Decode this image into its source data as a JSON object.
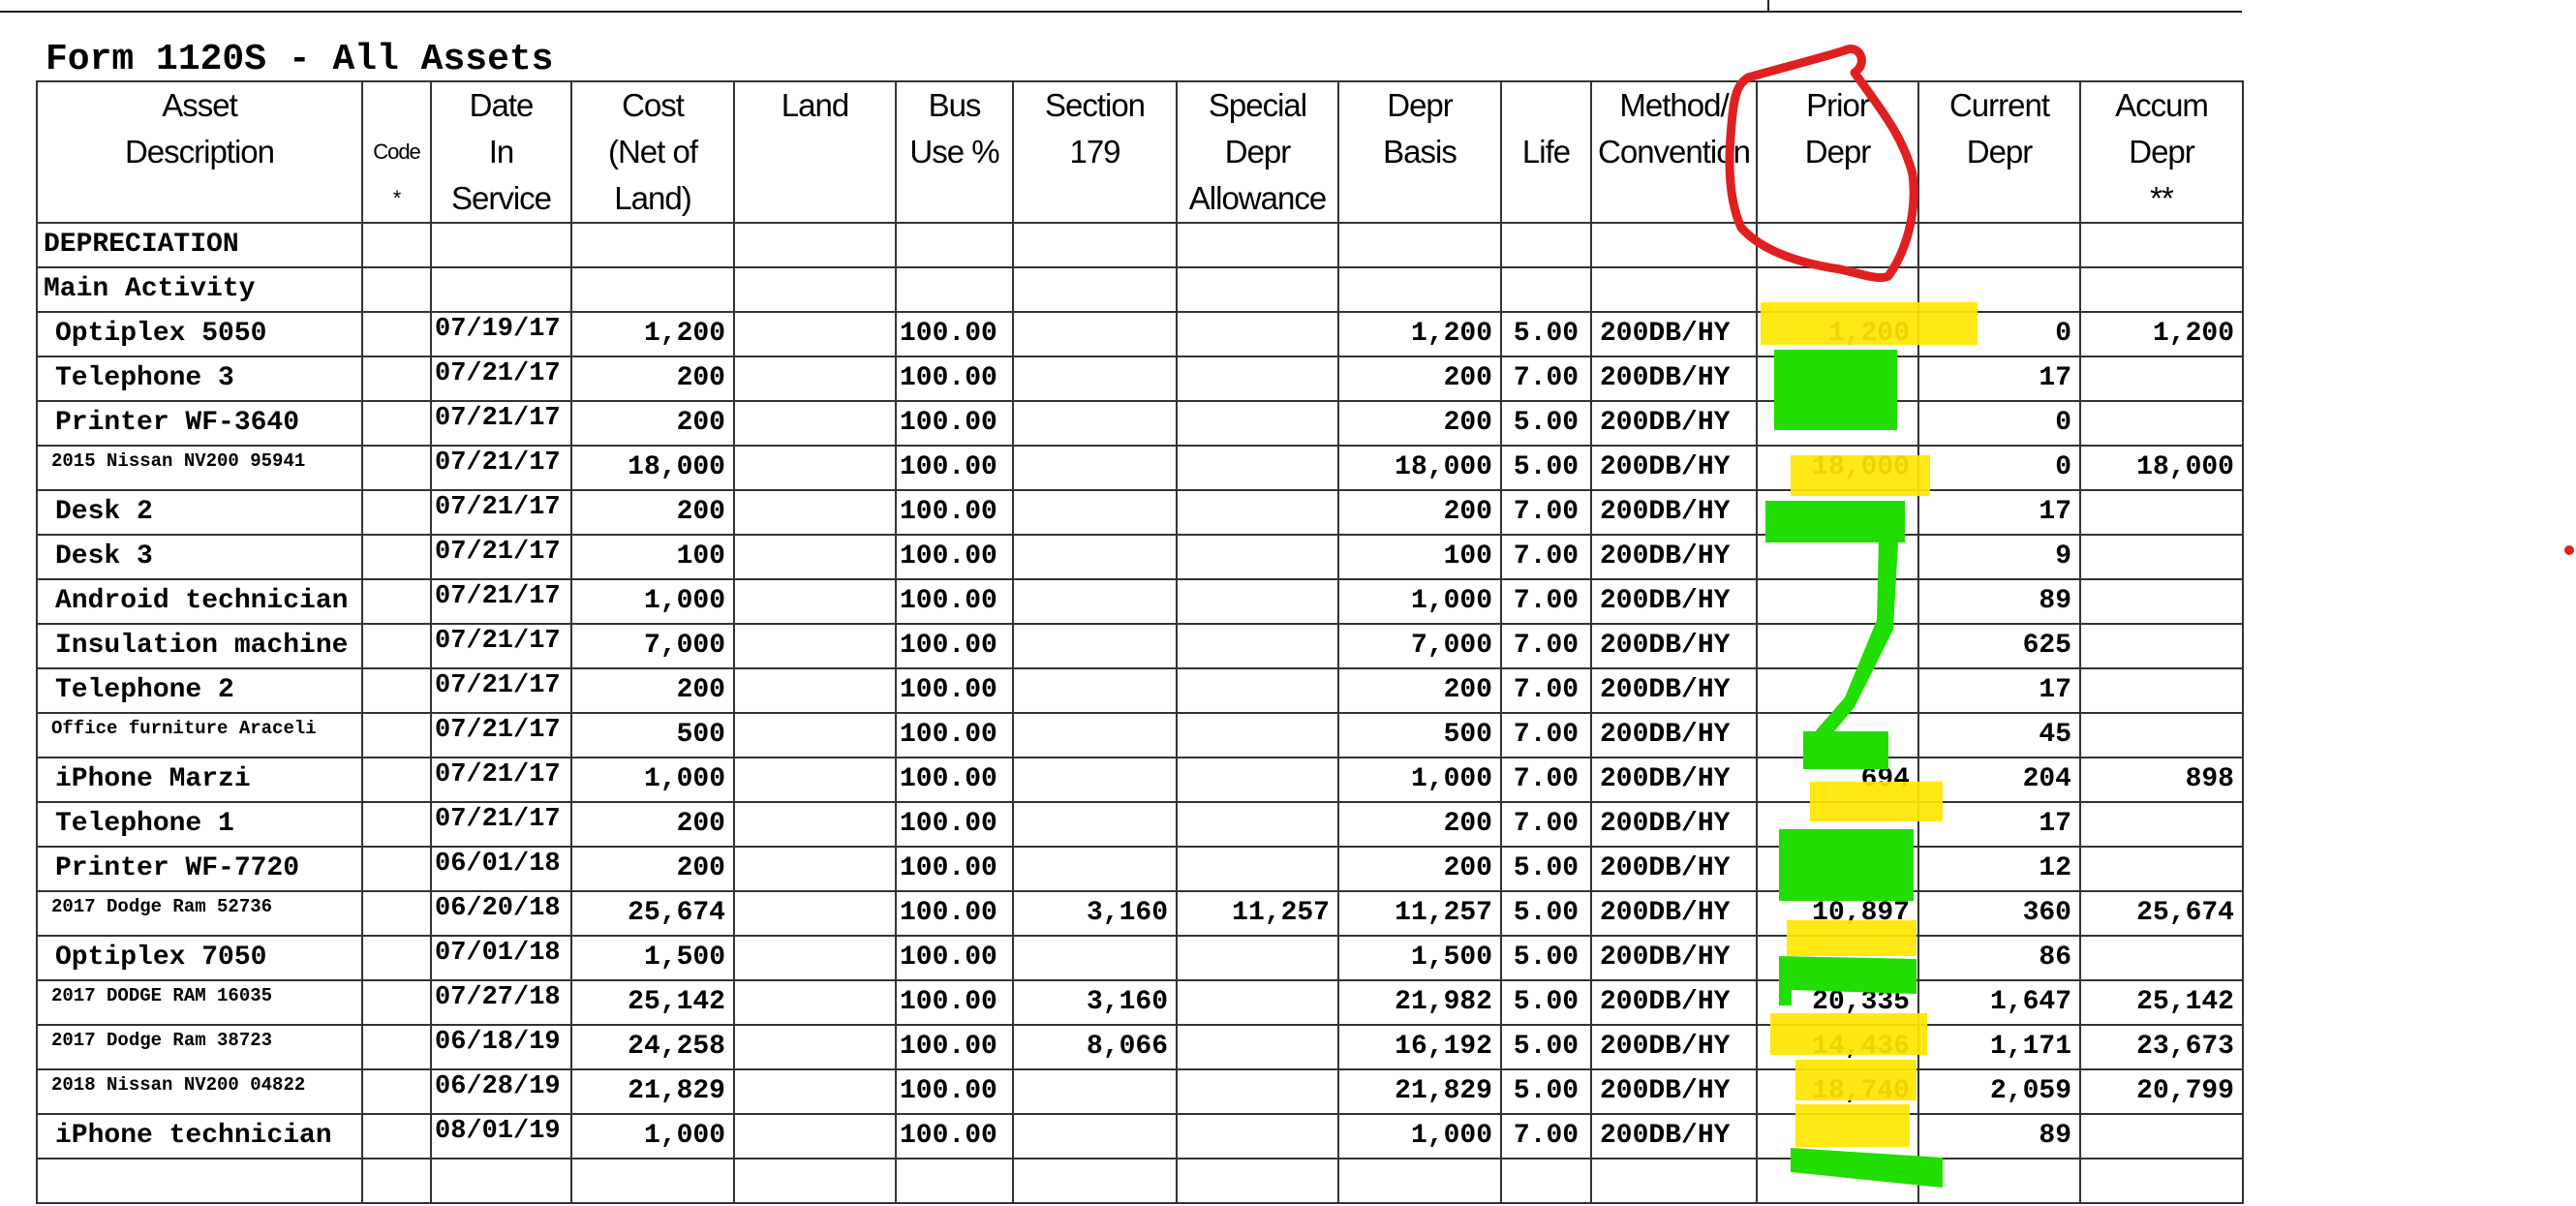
{
  "title": "Form 1120S - All Assets",
  "columns": [
    {
      "lines": [
        "Asset",
        "Description",
        ""
      ]
    },
    {
      "lines": [
        "Code",
        "*"
      ]
    },
    {
      "lines": [
        "Date",
        "In",
        "Service"
      ]
    },
    {
      "lines": [
        "Cost",
        "(Net of",
        "Land)"
      ]
    },
    {
      "lines": [
        "Land",
        "",
        ""
      ]
    },
    {
      "lines": [
        "Bus",
        "Use %",
        ""
      ]
    },
    {
      "lines": [
        "Section",
        "179",
        ""
      ]
    },
    {
      "lines": [
        "Special",
        "Depr",
        "Allowance"
      ]
    },
    {
      "lines": [
        "Depr",
        "Basis",
        ""
      ]
    },
    {
      "lines": [
        "",
        "Life",
        ""
      ]
    },
    {
      "lines": [
        "Method/",
        "Convention",
        ""
      ]
    },
    {
      "lines": [
        "Prior",
        "Depr",
        ""
      ]
    },
    {
      "lines": [
        "Current",
        "Depr",
        ""
      ]
    },
    {
      "lines": [
        "Accum",
        "Depr",
        "**"
      ]
    }
  ],
  "sections": [
    "DEPRECIATION",
    "Main Activity"
  ],
  "rows": [
    [
      "Optiplex 5050",
      "",
      "07/19/17",
      "1,200",
      "",
      "100.00",
      "",
      "",
      "1,200",
      "5.00",
      "200DB/HY",
      "1,200",
      "0",
      "1,200"
    ],
    [
      "Telephone 3",
      "",
      "07/21/17",
      "200",
      "",
      "100.00",
      "",
      "",
      "200",
      "7.00",
      "200DB/HY",
      "",
      "17",
      ""
    ],
    [
      "Printer WF-3640",
      "",
      "07/21/17",
      "200",
      "",
      "100.00",
      "",
      "",
      "200",
      "5.00",
      "200DB/HY",
      "",
      "0",
      ""
    ],
    [
      "2015 Nissan NV200 95941",
      "",
      "07/21/17",
      "18,000",
      "",
      "100.00",
      "",
      "",
      "18,000",
      "5.00",
      "200DB/HY",
      "18,000",
      "0",
      "18,000"
    ],
    [
      "Desk 2",
      "",
      "07/21/17",
      "200",
      "",
      "100.00",
      "",
      "",
      "200",
      "7.00",
      "200DB/HY",
      "",
      "17",
      ""
    ],
    [
      "Desk 3",
      "",
      "07/21/17",
      "100",
      "",
      "100.00",
      "",
      "",
      "100",
      "7.00",
      "200DB/HY",
      "",
      "9",
      ""
    ],
    [
      "Android technician",
      "",
      "07/21/17",
      "1,000",
      "",
      "100.00",
      "",
      "",
      "1,000",
      "7.00",
      "200DB/HY",
      "",
      "89",
      ""
    ],
    [
      "Insulation machine",
      "",
      "07/21/17",
      "7,000",
      "",
      "100.00",
      "",
      "",
      "7,000",
      "7.00",
      "200DB/HY",
      "",
      "625",
      ""
    ],
    [
      "Telephone 2",
      "",
      "07/21/17",
      "200",
      "",
      "100.00",
      "",
      "",
      "200",
      "7.00",
      "200DB/HY",
      "",
      "17",
      ""
    ],
    [
      "Office furniture Araceli",
      "",
      "07/21/17",
      "500",
      "",
      "100.00",
      "",
      "",
      "500",
      "7.00",
      "200DB/HY",
      "",
      "45",
      ""
    ],
    [
      "iPhone Marzi",
      "",
      "07/21/17",
      "1,000",
      "",
      "100.00",
      "",
      "",
      "1,000",
      "7.00",
      "200DB/HY",
      "694",
      "204",
      "898"
    ],
    [
      "Telephone 1",
      "",
      "07/21/17",
      "200",
      "",
      "100.00",
      "",
      "",
      "200",
      "7.00",
      "200DB/HY",
      "",
      "17",
      ""
    ],
    [
      "Printer WF-7720",
      "",
      "06/01/18",
      "200",
      "",
      "100.00",
      "",
      "",
      "200",
      "5.00",
      "200DB/HY",
      "",
      "12",
      ""
    ],
    [
      "2017 Dodge Ram 52736",
      "",
      "06/20/18",
      "25,674",
      "",
      "100.00",
      "3,160",
      "11,257",
      "11,257",
      "5.00",
      "200DB/HY",
      "10,897",
      "360",
      "25,674"
    ],
    [
      "Optiplex 7050",
      "",
      "07/01/18",
      "1,500",
      "",
      "100.00",
      "",
      "",
      "1,500",
      "5.00",
      "200DB/HY",
      "",
      "86",
      ""
    ],
    [
      "2017 DODGE RAM 16035",
      "",
      "07/27/18",
      "25,142",
      "",
      "100.00",
      "3,160",
      "",
      "21,982",
      "5.00",
      "200DB/HY",
      "20,335",
      "1,647",
      "25,142"
    ],
    [
      "2017 Dodge Ram 38723",
      "",
      "06/18/19",
      "24,258",
      "",
      "100.00",
      "8,066",
      "",
      "16,192",
      "5.00",
      "200DB/HY",
      "14,436",
      "1,171",
      "23,673"
    ],
    [
      "2018 Nissan NV200 04822",
      "",
      "06/28/19",
      "21,829",
      "",
      "100.00",
      "",
      "",
      "21,829",
      "5.00",
      "200DB/HY",
      "18,740",
      "2,059",
      "20,799"
    ],
    [
      "iPhone technician",
      "",
      "08/01/19",
      "1,000",
      "",
      "100.00",
      "",
      "",
      "1,000",
      "7.00",
      "200DB/HY",
      "",
      "89",
      ""
    ]
  ],
  "annotations": {
    "circle_color": "#e02020",
    "highlight_color": "#ffe600",
    "scribble_color": "#22dd00"
  }
}
